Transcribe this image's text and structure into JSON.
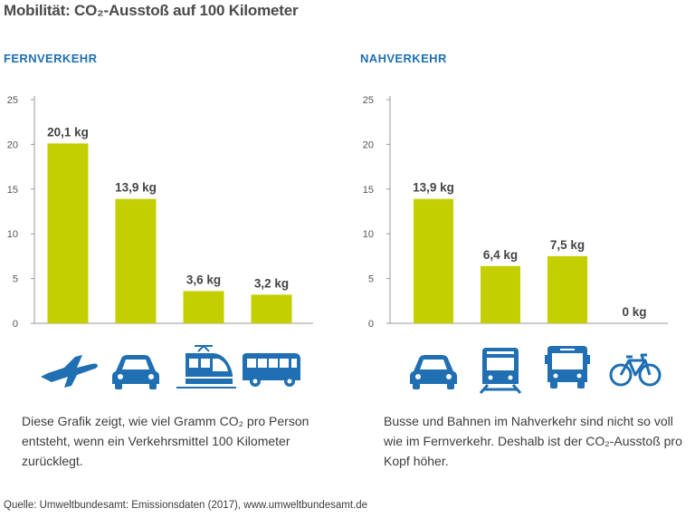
{
  "title": "Mobilität: CO₂-Ausstoß auf 100 Kilometer",
  "colors": {
    "bar": "#c4cf00",
    "icon": "#1f6fb2",
    "heading": "#1f6fb2",
    "axis": "#9a9a9a"
  },
  "chart_data": [
    {
      "type": "bar",
      "title": "FERNVERKEHR",
      "categories": [
        "airplane-icon",
        "car-icon",
        "train-icon",
        "coach-bus-icon"
      ],
      "values": [
        20.1,
        13.9,
        3.6,
        3.2
      ],
      "data_labels": [
        "20,1 kg",
        "13,9 kg",
        "3,6 kg",
        "3,2 kg"
      ],
      "yticks": [
        "0",
        "5",
        "10",
        "15",
        "20",
        "25"
      ],
      "ylim": [
        0,
        25
      ],
      "xlabel": "",
      "ylabel": ""
    },
    {
      "type": "bar",
      "title": "NAHVERKEHR",
      "categories": [
        "car-icon",
        "tram-icon",
        "city-bus-icon",
        "bicycle-icon"
      ],
      "values": [
        13.9,
        6.4,
        7.5,
        0
      ],
      "data_labels": [
        "13,9 kg",
        "6,4 kg",
        "7,5 kg",
        "0 kg"
      ],
      "yticks": [
        "0",
        "5",
        "10",
        "15",
        "20",
        "25"
      ],
      "ylim": [
        0,
        25
      ],
      "xlabel": "",
      "ylabel": ""
    }
  ],
  "descriptions": {
    "left": "Diese Grafik zeigt, wie viel Gramm CO₂ pro Person entsteht, wenn ein Verkehrsmittel 100 Kilometer zurücklegt.",
    "right": "Busse und Bahnen im Nahverkehr sind nicht so voll wie im Fernverkehr. Deshalb ist der CO₂-Ausstoß pro Kopf höher."
  },
  "source": "Quelle: Umweltbundesamt: Emissionsdaten (2017), www.umweltbundesamt.de"
}
